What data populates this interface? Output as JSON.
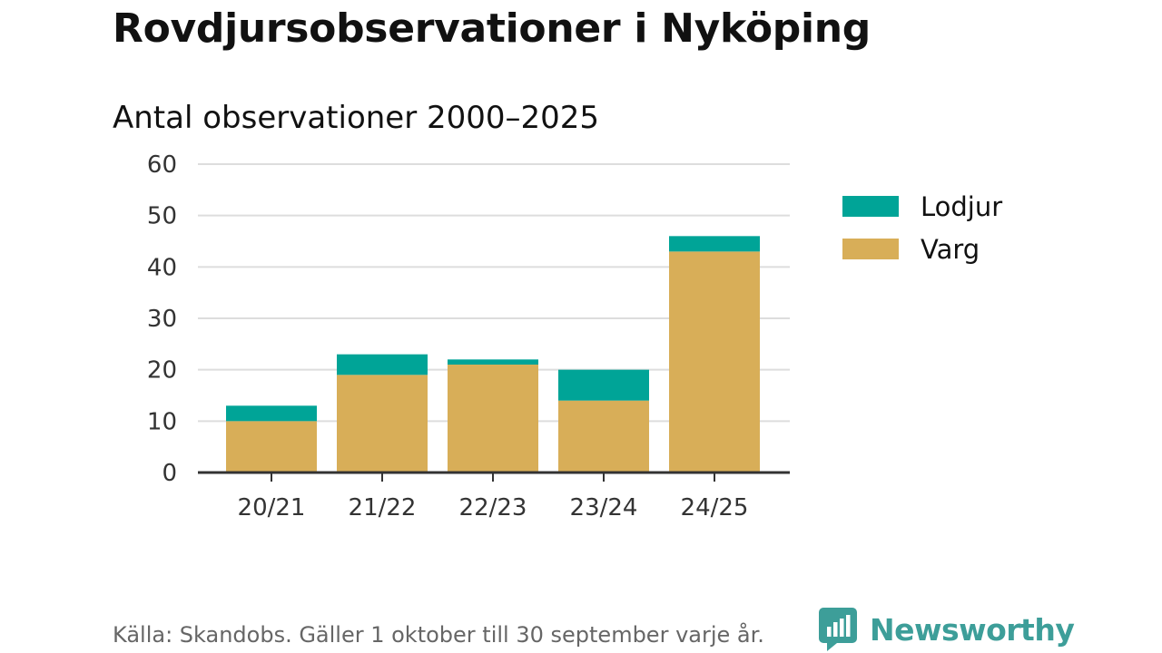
{
  "chart_data": {
    "type": "bar",
    "stacked": true,
    "title": "Rovdjursobservationer i Nyköping",
    "subtitle": "Antal observationer 2000–2025",
    "categories": [
      "20/21",
      "21/22",
      "22/23",
      "23/24",
      "24/25"
    ],
    "series": [
      {
        "name": "Varg",
        "color": "#d8ae58",
        "values": [
          10,
          19,
          21,
          14,
          43
        ]
      },
      {
        "name": "Lodjur",
        "color": "#00a497",
        "values": [
          3,
          4,
          1,
          6,
          3
        ]
      }
    ],
    "ylim": [
      0,
      60
    ],
    "yticks": [
      0,
      10,
      20,
      30,
      40,
      50,
      60
    ],
    "ytick_labels": [
      "0",
      "10",
      "20",
      "30",
      "40",
      "50",
      "60"
    ],
    "grid": true,
    "legend": {
      "placement": "top-right",
      "order": [
        "Lodjur",
        "Varg"
      ]
    }
  },
  "footer": {
    "source": "Källa: Skandobs. Gäller 1 oktober till 30 september varje år.",
    "brand": "Newsworthy",
    "brand_color": "#3d9e99",
    "brand_icon": "newsworthy-logo-icon"
  }
}
